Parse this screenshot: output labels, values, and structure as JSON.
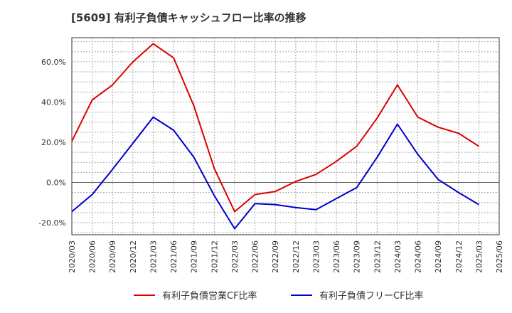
{
  "chart_data": {
    "type": "line",
    "title": "[5609]  有利子負債キャッシュフロー比率の推移",
    "xlabel": "",
    "ylabel": "",
    "x": [
      "2020/03",
      "2020/06",
      "2020/09",
      "2020/12",
      "2021/03",
      "2021/06",
      "2021/09",
      "2021/12",
      "2022/03",
      "2022/06",
      "2022/09",
      "2022/12",
      "2023/03",
      "2023/06",
      "2023/09",
      "2023/12",
      "2024/03",
      "2024/06",
      "2024/09",
      "2024/12",
      "2025/03"
    ],
    "x_ticks": [
      "2020/03",
      "2020/06",
      "2020/09",
      "2020/12",
      "2021/03",
      "2021/06",
      "2021/09",
      "2021/12",
      "2022/03",
      "2022/06",
      "2022/09",
      "2022/12",
      "2023/03",
      "2023/06",
      "2023/09",
      "2023/12",
      "2024/03",
      "2024/06",
      "2024/09",
      "2024/12",
      "2025/03",
      "2025/06"
    ],
    "ylim": [
      -26,
      72
    ],
    "y_ticks": [
      -20,
      0,
      20,
      40,
      60
    ],
    "y_tick_labels": [
      "-20.0%",
      "0.0%",
      "20.0%",
      "40.0%",
      "60.0%"
    ],
    "grid": true,
    "legend_position": "bottom",
    "series": [
      {
        "name": "有利子負債営業CF比率",
        "color": "#dd0000",
        "values": [
          20.5,
          41,
          48.5,
          60,
          69,
          62,
          38,
          7,
          -14.5,
          -6,
          -4.5,
          0.5,
          4,
          10.5,
          18,
          32,
          48.5,
          32.5,
          27.5,
          24.5,
          18
        ]
      },
      {
        "name": "有利子負債フリーCF比率",
        "color": "#0000cc",
        "values": [
          -14.5,
          -6,
          6.5,
          19.5,
          32.5,
          26,
          12.5,
          -6.5,
          -23,
          -10.5,
          -11,
          -12.5,
          -13.5,
          -8,
          -2.5,
          12.5,
          29,
          14,
          1.5,
          -5,
          -11
        ]
      }
    ]
  }
}
